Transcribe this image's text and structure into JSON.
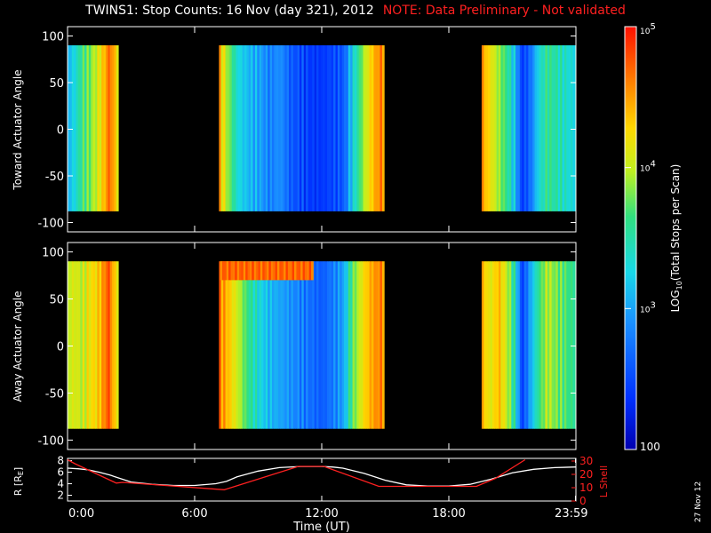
{
  "title": {
    "main": "TWINS1: Stop Counts: 16 Nov (day 321), 2012",
    "note": "NOTE: Data Preliminary - Not validated"
  },
  "date_stamp": "27 Nov 12",
  "colors": {
    "background": "#000000",
    "axes": "#ffffff",
    "note": "#ff2020",
    "r_line": "#ffffff",
    "lshell_line": "#ff2020"
  },
  "chart_data": [
    {
      "id": "toward",
      "type": "heatmap",
      "ylabel": "Toward Actuator Angle",
      "xlim": [
        0,
        24
      ],
      "ylim": [
        -110,
        110
      ],
      "yticks": [
        -100,
        -50,
        0,
        50,
        100
      ],
      "data_time_ranges": [
        [
          0,
          2.4
        ],
        [
          7.15,
          14.95
        ],
        [
          19.55,
          24
        ]
      ],
      "angle_range": [
        -88,
        90
      ],
      "log10_counts_by_time": [
        {
          "t": 0.0,
          "v": 3.1
        },
        {
          "t": 0.3,
          "v": 3.3
        },
        {
          "t": 0.6,
          "v": 3.6
        },
        {
          "t": 1.0,
          "v": 3.8
        },
        {
          "t": 1.4,
          "v": 4.1
        },
        {
          "t": 1.7,
          "v": 4.4
        },
        {
          "t": 1.9,
          "v": 4.7
        },
        {
          "t": 2.1,
          "v": 4.5
        },
        {
          "t": 2.3,
          "v": 4.2
        },
        {
          "t": 7.15,
          "v": 4.4
        },
        {
          "t": 7.5,
          "v": 3.9
        },
        {
          "t": 8.0,
          "v": 3.3
        },
        {
          "t": 8.5,
          "v": 3.1
        },
        {
          "t": 9.0,
          "v": 3.0
        },
        {
          "t": 9.5,
          "v": 2.8
        },
        {
          "t": 10.0,
          "v": 2.9
        },
        {
          "t": 10.5,
          "v": 2.6
        },
        {
          "t": 11.0,
          "v": 2.5
        },
        {
          "t": 11.5,
          "v": 2.4
        },
        {
          "t": 12.0,
          "v": 2.4
        },
        {
          "t": 12.5,
          "v": 2.5
        },
        {
          "t": 13.0,
          "v": 2.6
        },
        {
          "t": 13.3,
          "v": 3.1
        },
        {
          "t": 13.7,
          "v": 3.6
        },
        {
          "t": 14.0,
          "v": 4.0
        },
        {
          "t": 14.4,
          "v": 4.4
        },
        {
          "t": 14.7,
          "v": 4.6
        },
        {
          "t": 19.55,
          "v": 4.5
        },
        {
          "t": 19.9,
          "v": 4.2
        },
        {
          "t": 20.3,
          "v": 3.9
        },
        {
          "t": 20.7,
          "v": 3.6
        },
        {
          "t": 21.1,
          "v": 3.1
        },
        {
          "t": 21.4,
          "v": 2.4
        },
        {
          "t": 21.8,
          "v": 2.7
        },
        {
          "t": 22.2,
          "v": 3.3
        },
        {
          "t": 22.6,
          "v": 3.6
        },
        {
          "t": 23.0,
          "v": 3.5
        },
        {
          "t": 23.4,
          "v": 3.4
        },
        {
          "t": 23.8,
          "v": 3.3
        }
      ]
    },
    {
      "id": "away",
      "type": "heatmap",
      "ylabel": "Away Actuator Angle",
      "xlim": [
        0,
        24
      ],
      "ylim": [
        -110,
        110
      ],
      "yticks": [
        -100,
        -50,
        0,
        50,
        100
      ],
      "data_time_ranges": [
        [
          0,
          2.4
        ],
        [
          7.15,
          14.95
        ],
        [
          19.55,
          24
        ]
      ],
      "angle_range": [
        -88,
        90
      ],
      "log10_counts_by_time": [
        {
          "t": 0.0,
          "v": 4.0
        },
        {
          "t": 0.3,
          "v": 4.1
        },
        {
          "t": 0.6,
          "v": 4.0
        },
        {
          "t": 1.0,
          "v": 4.2
        },
        {
          "t": 1.4,
          "v": 4.3
        },
        {
          "t": 1.7,
          "v": 4.6
        },
        {
          "t": 1.9,
          "v": 4.8
        },
        {
          "t": 2.1,
          "v": 4.4
        },
        {
          "t": 2.3,
          "v": 4.2
        },
        {
          "t": 7.15,
          "v": 4.6
        },
        {
          "t": 7.5,
          "v": 4.4
        },
        {
          "t": 8.0,
          "v": 4.0
        },
        {
          "t": 8.5,
          "v": 3.6
        },
        {
          "t": 9.0,
          "v": 3.3
        },
        {
          "t": 9.5,
          "v": 3.1
        },
        {
          "t": 10.0,
          "v": 3.0
        },
        {
          "t": 10.5,
          "v": 2.9
        },
        {
          "t": 11.0,
          "v": 2.8
        },
        {
          "t": 11.5,
          "v": 2.7
        },
        {
          "t": 12.0,
          "v": 2.6
        },
        {
          "t": 12.5,
          "v": 2.8
        },
        {
          "t": 13.0,
          "v": 3.0
        },
        {
          "t": 13.3,
          "v": 3.6
        },
        {
          "t": 13.7,
          "v": 4.0
        },
        {
          "t": 14.0,
          "v": 4.3
        },
        {
          "t": 14.4,
          "v": 4.5
        },
        {
          "t": 14.7,
          "v": 4.6
        },
        {
          "t": 19.55,
          "v": 4.4
        },
        {
          "t": 19.9,
          "v": 4.1
        },
        {
          "t": 20.3,
          "v": 4.4
        },
        {
          "t": 20.7,
          "v": 4.0
        },
        {
          "t": 21.1,
          "v": 3.4
        },
        {
          "t": 21.4,
          "v": 2.4
        },
        {
          "t": 21.8,
          "v": 3.0
        },
        {
          "t": 22.2,
          "v": 3.6
        },
        {
          "t": 22.6,
          "v": 4.0
        },
        {
          "t": 23.0,
          "v": 3.8
        },
        {
          "t": 23.4,
          "v": 3.7
        },
        {
          "t": 23.8,
          "v": 3.6
        }
      ],
      "hot_band": {
        "t_range": [
          7.2,
          11.5
        ],
        "angle_range": [
          70,
          90
        ],
        "v": 4.7
      }
    },
    {
      "id": "orbit",
      "type": "line",
      "xlabel": "Time (UT)",
      "xlim": [
        0,
        24
      ],
      "xticks": [
        0,
        6,
        12,
        18,
        23.98
      ],
      "xtick_labels": [
        "0:00",
        "6:00",
        "12:00",
        "18:00",
        "23:59"
      ],
      "ylabel_left": "R [R",
      "ylabel_left_sub": "E",
      "ylabel_left_close": "]",
      "ylim_left": [
        1,
        8.4
      ],
      "yticks_left": [
        2,
        4,
        6,
        8
      ],
      "ylabel_right": "L Shell",
      "ylim_right": [
        0,
        32
      ],
      "yticks_right": [
        0,
        10,
        20,
        30
      ],
      "series": [
        {
          "name": "R",
          "axis": "left",
          "x": [
            0,
            0.5,
            1,
            1.5,
            2,
            2.5,
            3,
            4,
            5,
            6,
            7,
            7.5,
            8,
            9,
            10,
            11,
            11.5,
            12,
            12.5,
            13,
            14,
            15,
            16,
            17,
            18,
            19,
            20,
            21,
            22,
            23,
            24
          ],
          "y": [
            6.7,
            6.6,
            6.4,
            6.0,
            5.5,
            4.9,
            4.3,
            3.9,
            3.7,
            3.7,
            4.0,
            4.4,
            5.2,
            6.2,
            6.8,
            7.0,
            7.0,
            7.0,
            6.9,
            6.7,
            5.8,
            4.6,
            3.8,
            3.6,
            3.6,
            3.9,
            4.8,
            5.9,
            6.5,
            6.8,
            6.9
          ]
        },
        {
          "name": "L Shell",
          "axis": "right",
          "x": [
            0,
            0.35,
            2.3,
            2.6,
            7.4,
            10.9,
            12.1,
            14.7,
            19.3,
            20.2,
            21.6
          ],
          "y": [
            31,
            28,
            13.5,
            14,
            8.5,
            26,
            26,
            11,
            11,
            17,
            31
          ]
        }
      ]
    }
  ],
  "colorbar": {
    "label": "LOG",
    "label_sub": "10",
    "label_rest": "(Total Stops per Scan)",
    "vlim": [
      2,
      5
    ],
    "ticks": [
      {
        "v": 5,
        "base": "10",
        "exp": "5"
      },
      {
        "v": 4,
        "base": "10",
        "exp": "4"
      },
      {
        "v": 3,
        "base": "10",
        "exp": "3"
      },
      {
        "v": 2,
        "text": "100"
      }
    ]
  }
}
